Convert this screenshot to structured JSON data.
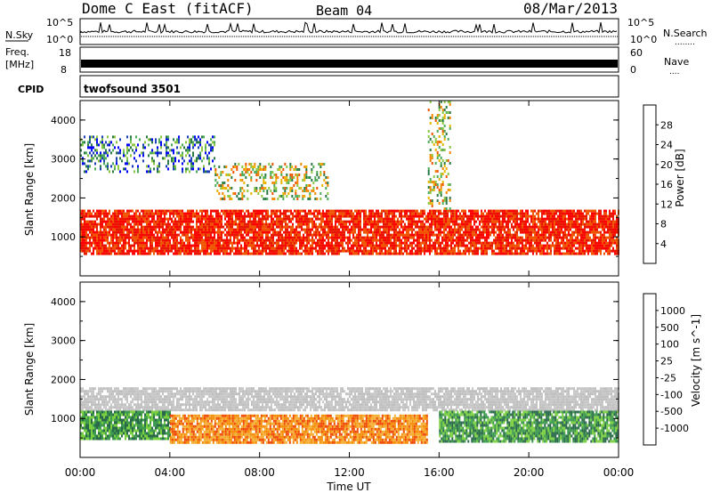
{
  "header": {
    "title": "Dome C East (fitACF)",
    "beam": "Beam 04",
    "date": "08/Mar/2013"
  },
  "noise_panel": {
    "left_label": "N.Sky",
    "left_ticks": [
      "10^5",
      "10^0"
    ],
    "right_ticks": [
      "10^5",
      "10^0"
    ],
    "right_label": "N.Search",
    "right_legend_dots": "........"
  },
  "freq_panel": {
    "left_label_line1": "Freq.",
    "left_label_line2": "[MHz]",
    "left_ticks": [
      "18",
      "8"
    ],
    "right_ticks": [
      "60",
      "0"
    ],
    "right_label": "Nave",
    "right_legend_dots": "...."
  },
  "cpid_panel": {
    "label": "CPID",
    "program": "twofsound 3501"
  },
  "chart_data": [
    {
      "type": "heatmap",
      "quantity": "Power",
      "ylabel": "Slant Range [km]",
      "ylim": [
        0,
        4500
      ],
      "yticks": [
        1000,
        2000,
        3000,
        4000
      ],
      "xlim": [
        "00:00",
        "24:00"
      ],
      "colorbar": {
        "label": "Power [dB]",
        "ticks": [
          "28",
          "24",
          "20",
          "16",
          "12",
          "8",
          "4"
        ],
        "colors": [
          "#0000ff",
          "#1a3fb8",
          "#2a7a46",
          "#4bab58",
          "#8ac640",
          "#e7b400",
          "#f58700",
          "#f05400",
          "#e81800",
          "#ff0000"
        ]
      },
      "bands": [
        {
          "t_start": 0,
          "t_end": 24,
          "r_min": 600,
          "r_max": 1700,
          "level": "high"
        },
        {
          "t_start": 6,
          "t_end": 11,
          "r_min": 2000,
          "r_max": 2900,
          "level": "medium"
        },
        {
          "t_start": 0,
          "t_end": 6,
          "r_min": 2700,
          "r_max": 3600,
          "level": "low"
        },
        {
          "t_start": 15.5,
          "t_end": 16.5,
          "r_min": 1700,
          "r_max": 4500,
          "level": "medium"
        }
      ]
    },
    {
      "type": "heatmap",
      "quantity": "Velocity",
      "ylabel": "Slant Range [km]",
      "ylim": [
        0,
        4500
      ],
      "yticks": [
        1000,
        2000,
        3000,
        4000
      ],
      "xlim": [
        "00:00",
        "24:00"
      ],
      "xticks": [
        "00:00",
        "04:00",
        "08:00",
        "12:00",
        "16:00",
        "20:00",
        "00:00"
      ],
      "xlabel": "Time UT",
      "colorbar": {
        "label": "Velocity [m s^-1]",
        "ticks": [
          "1000",
          "500",
          "100",
          "25",
          "-25",
          "-100",
          "-500",
          "-1000"
        ],
        "colors": [
          "#ff0000",
          "#f04800",
          "#f58a00",
          "#f5ad30",
          "#c8c8c8",
          "#c0c0c0",
          "#7ad040",
          "#3e9a4e",
          "#2a6a4a",
          "#1a3fb0"
        ]
      },
      "bands": [
        {
          "t_start": 0,
          "t_end": 24,
          "r_min": 1200,
          "r_max": 1800,
          "level": "zero"
        },
        {
          "t_start": 0,
          "t_end": 4,
          "r_min": 500,
          "r_max": 1200,
          "level": "positive"
        },
        {
          "t_start": 4,
          "t_end": 15.5,
          "r_min": 400,
          "r_max": 1100,
          "level": "negative"
        },
        {
          "t_start": 16,
          "t_end": 24,
          "r_min": 400,
          "r_max": 1200,
          "level": "positive"
        }
      ]
    }
  ],
  "colors": {
    "axis": "#000000",
    "background": "#ffffff"
  }
}
